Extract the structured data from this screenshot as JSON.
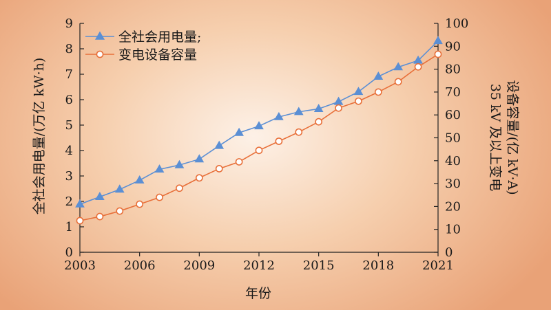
{
  "chart_data": {
    "type": "line",
    "x": [
      2003,
      2004,
      2005,
      2006,
      2007,
      2008,
      2009,
      2010,
      2011,
      2012,
      2013,
      2014,
      2015,
      2016,
      2017,
      2018,
      2019,
      2020,
      2021
    ],
    "x_ticks": [
      "2003",
      "2006",
      "2009",
      "2012",
      "2015",
      "2018",
      "2021"
    ],
    "xlabel": "年份",
    "ylabel_left": "全社会用电量/(万亿 kW·h)",
    "ylabel_right_line1": "35 kV 及以上变电",
    "ylabel_right_line2": "设备容量/(亿 kV·A)",
    "ylim_left": [
      0,
      9
    ],
    "ylim_right": [
      0,
      100
    ],
    "y_ticks_left": [
      "0",
      "1",
      "2",
      "3",
      "4",
      "5",
      "6",
      "7",
      "8",
      "9"
    ],
    "y_ticks_right": [
      "0",
      "10",
      "20",
      "30",
      "40",
      "50",
      "60",
      "70",
      "80",
      "90",
      "100"
    ],
    "legend_position": "top-left",
    "grid": false,
    "series": [
      {
        "name": "全社会用电量;",
        "axis": "left",
        "color": "#5b8fd4",
        "marker": "triangle",
        "values": [
          1.89,
          2.18,
          2.47,
          2.83,
          3.26,
          3.43,
          3.66,
          4.19,
          4.7,
          4.96,
          5.32,
          5.52,
          5.64,
          5.92,
          6.31,
          6.91,
          7.28,
          7.54,
          8.31
        ]
      },
      {
        "name": "变电设备容量",
        "axis": "right",
        "color": "#e8703a",
        "marker": "circle",
        "values": [
          13.8,
          15.6,
          18.0,
          21.0,
          24.0,
          28.0,
          32.5,
          36.5,
          39.5,
          44.5,
          48.5,
          52.5,
          57.0,
          63.0,
          66.0,
          70.0,
          74.5,
          81.0,
          86.5
        ]
      }
    ]
  }
}
